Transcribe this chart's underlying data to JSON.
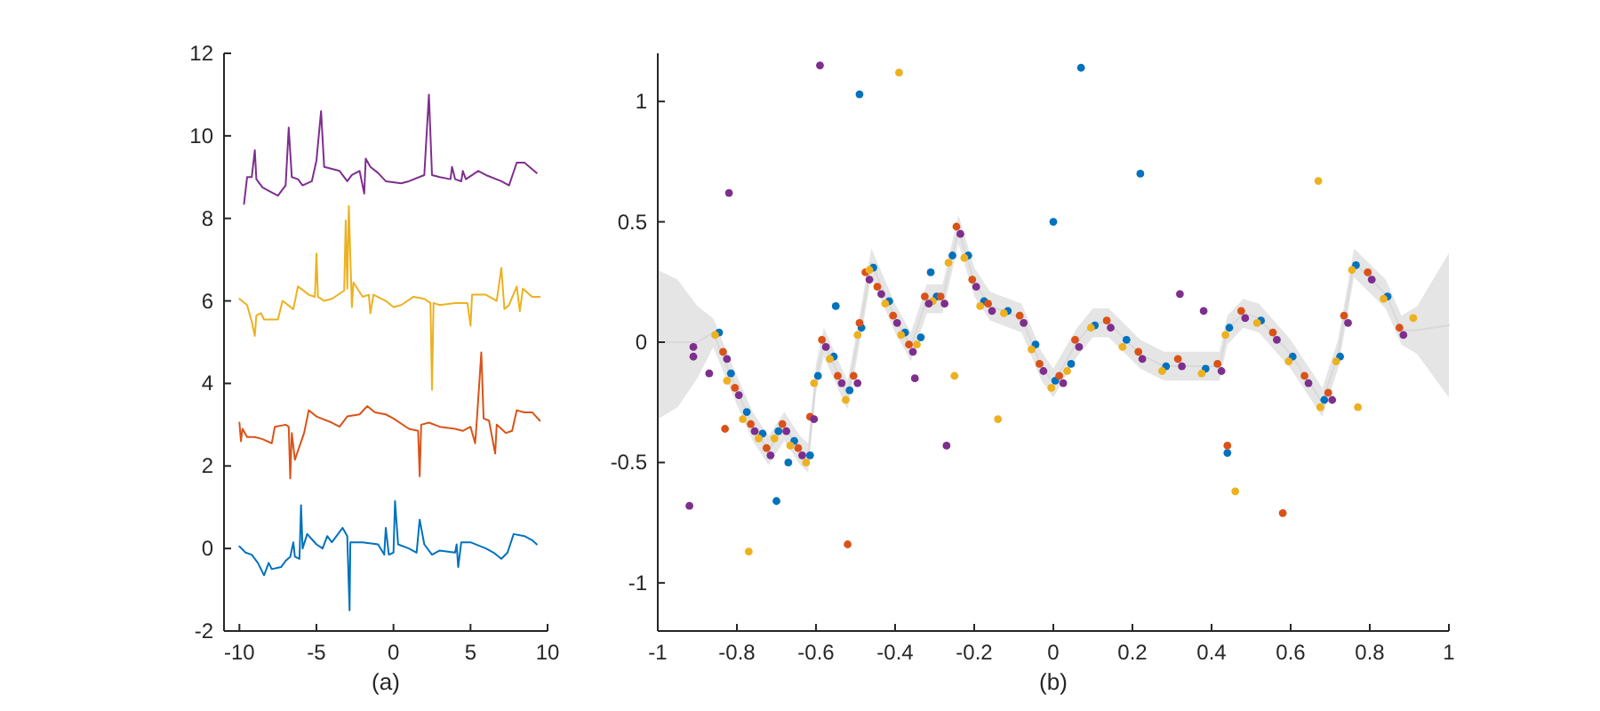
{
  "chart_data": [
    {
      "type": "line",
      "xlabel": "(a)",
      "xlim": [
        -11,
        10
      ],
      "xticks": [
        -10,
        -5,
        0,
        5,
        10
      ],
      "ylim": [
        -2,
        12
      ],
      "yticks": [
        -2,
        0,
        2,
        4,
        6,
        8,
        10,
        12
      ],
      "marker": "none",
      "line_style": "solid",
      "series": [
        {
          "color": "#0072bd",
          "x": [
            -10,
            -9.6,
            -9.2,
            -8.8,
            -8.4,
            -8.1,
            -7.9,
            -7.3,
            -7,
            -6.7,
            -6.5,
            -6.4,
            -6.1,
            -6,
            -5.9,
            -5.6,
            -5,
            -4.6,
            -4.3,
            -4,
            -3.3,
            -3,
            -2.85,
            -2.8,
            -2,
            -1,
            -0.6,
            -0.5,
            -0.3,
            0,
            0.1,
            0.3,
            1,
            1.5,
            1.7,
            2,
            2.5,
            3,
            4,
            4.1,
            4.2,
            4.4,
            5,
            6,
            6.5,
            7,
            7.4,
            7.8,
            8.5,
            9,
            9.3
          ],
          "values": [
            0.05,
            -0.1,
            -0.15,
            -0.35,
            -0.65,
            -0.35,
            -0.5,
            -0.45,
            -0.3,
            -0.2,
            0.15,
            -0.2,
            -0.25,
            1.05,
            0,
            0.35,
            0.1,
            0,
            0.3,
            0.15,
            0.5,
            0.3,
            -1.5,
            0.15,
            0.15,
            0.1,
            -0.15,
            0.5,
            -0.15,
            -0.1,
            1.15,
            0.1,
            0,
            -0.1,
            0.7,
            0.1,
            -0.15,
            -0.05,
            -0.1,
            0.1,
            -0.45,
            0.15,
            0.15,
            0,
            -0.1,
            -0.25,
            -0.1,
            0.35,
            0.3,
            0.2,
            0.1
          ]
        },
        {
          "color": "#d95319",
          "x": [
            -10,
            -9.9,
            -9.8,
            -9.5,
            -9,
            -8.5,
            -7.9,
            -7.7,
            -7,
            -6.8,
            -6.7,
            -6.6,
            -6.4,
            -5.8,
            -5.5,
            -5,
            -4,
            -3.5,
            -3,
            -2.2,
            -1.7,
            -1.2,
            -0.5,
            0,
            1,
            1.6,
            1.7,
            1.8,
            2.3,
            3,
            4,
            4.5,
            5,
            5.3,
            5.4,
            5.7,
            5.85,
            6.2,
            6.6,
            6.7,
            7.3,
            7.7,
            8,
            8.5,
            9,
            9.5
          ],
          "values": [
            3.05,
            2.6,
            2.9,
            2.7,
            2.7,
            2.65,
            2.55,
            2.95,
            3,
            2.95,
            1.7,
            2.8,
            2.15,
            2.8,
            3.35,
            3.2,
            3.05,
            2.95,
            3.2,
            3.25,
            3.45,
            3.3,
            3.25,
            3.15,
            2.9,
            2.85,
            1.75,
            3,
            3.05,
            2.95,
            2.9,
            2.85,
            2.95,
            2.55,
            3.05,
            4.75,
            3.15,
            3.1,
            2.3,
            3,
            2.8,
            2.85,
            3.35,
            3.3,
            3.3,
            3.1
          ]
        },
        {
          "color": "#edb120",
          "x": [
            -10,
            -9.5,
            -9.2,
            -9,
            -8.9,
            -8.6,
            -8.4,
            -7.5,
            -7.2,
            -6.5,
            -6.2,
            -5.5,
            -5.1,
            -5,
            -4.9,
            -4.5,
            -4,
            -3.2,
            -3.1,
            -3,
            -2.9,
            -2.7,
            -2.6,
            -2,
            -1.6,
            -1.5,
            -1.3,
            -0.5,
            0,
            0.5,
            1.3,
            2,
            2.4,
            2.5,
            2.6,
            3,
            4,
            4.8,
            5,
            5.1,
            6,
            6.7,
            7,
            7.2,
            7.5,
            8,
            8.2,
            8.4,
            9,
            9.5
          ],
          "values": [
            6.05,
            5.9,
            5.5,
            5.15,
            5.65,
            5.7,
            5.55,
            5.55,
            6,
            5.8,
            6.35,
            6.15,
            6.1,
            7.15,
            6.1,
            6,
            6.05,
            6.25,
            7.95,
            6.3,
            8.3,
            5.85,
            6.45,
            6.1,
            6.15,
            5.7,
            6.15,
            6,
            5.85,
            5.9,
            6.1,
            6.05,
            5.95,
            3.85,
            5.95,
            5.9,
            5.95,
            5.95,
            5.4,
            6.15,
            6.15,
            6,
            6.8,
            5.8,
            5.9,
            6.35,
            5.75,
            6.3,
            6.1,
            6.1
          ]
        },
        {
          "color": "#7e2f8e",
          "x": [
            -9.7,
            -9.5,
            -9.2,
            -9,
            -8.9,
            -8.5,
            -8,
            -7.5,
            -7,
            -6.8,
            -6.6,
            -6.2,
            -5.9,
            -5.3,
            -5,
            -4.7,
            -4.5,
            -3.5,
            -3,
            -2.7,
            -2.2,
            -1.9,
            -1.8,
            -1.5,
            -1,
            -0.5,
            0.5,
            1,
            2,
            2.3,
            2.5,
            3,
            3.7,
            3.8,
            4,
            4.4,
            4.5,
            4.7,
            5.5,
            6,
            7,
            7.5,
            8,
            8.5,
            9.3
          ],
          "values": [
            8.35,
            9,
            9,
            9.65,
            8.95,
            8.75,
            8.65,
            8.55,
            8.8,
            10.2,
            9,
            8.95,
            8.8,
            8.9,
            9.4,
            10.6,
            9.25,
            9.15,
            8.9,
            9.05,
            9.15,
            8.6,
            9.45,
            9.25,
            9.1,
            8.9,
            8.85,
            8.9,
            9.05,
            11,
            9.05,
            9,
            8.95,
            9.25,
            8.95,
            8.9,
            9.15,
            8.95,
            9.15,
            9.05,
            8.9,
            8.8,
            9.35,
            9.35,
            9.1
          ]
        }
      ]
    },
    {
      "type": "scatter",
      "xlabel": "(b)",
      "xlim": [
        -1,
        1
      ],
      "xticks": [
        -1,
        -0.8,
        -0.6,
        -0.4,
        -0.2,
        0,
        0.2,
        0.4,
        0.6,
        0.8,
        1
      ],
      "ylim": [
        -1.2,
        1.2
      ],
      "yticks": [
        -1,
        -0.5,
        0,
        0.5,
        1
      ],
      "marker": "circle",
      "series": [
        {
          "type": "line",
          "marker": "none",
          "color": "#d9d9d9",
          "x": [
            -1,
            -0.95,
            -0.9,
            -0.86,
            -0.8,
            -0.76,
            -0.72,
            -0.68,
            -0.64,
            -0.62,
            -0.6,
            -0.58,
            -0.54,
            -0.52,
            -0.49,
            -0.46,
            -0.4,
            -0.36,
            -0.32,
            -0.28,
            -0.24,
            -0.2,
            -0.16,
            -0.08,
            -0.03,
            0,
            0.06,
            0.1,
            0.14,
            0.22,
            0.28,
            0.42,
            0.44,
            0.48,
            0.52,
            0.6,
            0.68,
            0.72,
            0.76,
            0.84,
            0.88,
            0.92,
            0.96,
            1
          ],
          "values": [
            0,
            0,
            0,
            0.04,
            -0.2,
            -0.35,
            -0.45,
            -0.35,
            -0.45,
            -0.48,
            -0.15,
            0,
            -0.15,
            -0.22,
            0.05,
            0.33,
            0.1,
            -0.02,
            0.18,
            0.18,
            0.47,
            0.25,
            0.15,
            0.1,
            -0.1,
            -0.17,
            0,
            0.08,
            0.08,
            -0.05,
            -0.1,
            -0.1,
            0.05,
            0.12,
            0.1,
            -0.05,
            -0.25,
            -0.05,
            0.33,
            0.2,
            0.05,
            0.05,
            0.06,
            0.07
          ],
          "lower": [
            -0.32,
            -0.27,
            -0.15,
            -0.02,
            -0.26,
            -0.41,
            -0.51,
            -0.41,
            -0.51,
            -0.54,
            -0.21,
            -0.06,
            -0.21,
            -0.28,
            -0.01,
            0.27,
            0.04,
            -0.08,
            0.12,
            0.12,
            0.41,
            0.19,
            0.09,
            0.04,
            -0.16,
            -0.23,
            -0.06,
            0.02,
            0.02,
            -0.11,
            -0.16,
            -0.16,
            -0.01,
            0.06,
            0.04,
            -0.11,
            -0.31,
            -0.11,
            0.27,
            0.14,
            -0.01,
            -0.05,
            -0.14,
            -0.23
          ],
          "upper": [
            0.3,
            0.26,
            0.15,
            0.1,
            -0.14,
            -0.29,
            -0.39,
            -0.29,
            -0.39,
            -0.42,
            -0.09,
            0.06,
            -0.09,
            -0.16,
            0.11,
            0.39,
            0.16,
            0.04,
            0.24,
            0.24,
            0.53,
            0.31,
            0.21,
            0.16,
            -0.04,
            -0.11,
            0.06,
            0.14,
            0.14,
            0.01,
            -0.04,
            -0.04,
            0.11,
            0.18,
            0.16,
            0.01,
            -0.19,
            0.01,
            0.39,
            0.26,
            0.11,
            0.15,
            0.26,
            0.37
          ]
        },
        {
          "color": "#0072bd",
          "x": [
            -0.845,
            -0.815,
            -0.775,
            -0.735,
            -0.695,
            -0.655,
            -0.615,
            -0.595,
            -0.555,
            -0.515,
            -0.485,
            -0.455,
            -0.415,
            -0.375,
            -0.335,
            -0.295,
            -0.255,
            -0.215,
            -0.175,
            -0.115,
            -0.045,
            0.005,
            0.045,
            0.105,
            0.185,
            0.285,
            0.385,
            0.445,
            0.525,
            0.605,
            0.685,
            0.725,
            0.765,
            0.845,
            -0.49,
            -0.7,
            -0.67,
            -0.55,
            -0.31,
            0,
            0.07,
            0.22,
            0.44
          ],
          "values": [
            0.04,
            -0.13,
            -0.29,
            -0.38,
            -0.37,
            -0.41,
            -0.47,
            -0.14,
            -0.06,
            -0.2,
            0.06,
            0.31,
            0.17,
            0.04,
            0.02,
            0.19,
            0.36,
            0.36,
            0.17,
            0.13,
            -0.01,
            -0.16,
            -0.09,
            0.07,
            0.01,
            -0.1,
            -0.11,
            0.06,
            0.09,
            -0.06,
            -0.24,
            -0.06,
            0.32,
            0.19,
            1.03,
            -0.66,
            -0.5,
            0.15,
            0.29,
            0.5,
            1.14,
            0.7,
            -0.46
          ]
        },
        {
          "color": "#d95319",
          "x": [
            -0.835,
            -0.805,
            -0.765,
            -0.725,
            -0.685,
            -0.645,
            -0.615,
            -0.585,
            -0.545,
            -0.505,
            -0.475,
            -0.445,
            -0.405,
            -0.365,
            -0.325,
            -0.285,
            -0.245,
            -0.205,
            -0.165,
            -0.085,
            -0.035,
            0.015,
            0.055,
            0.135,
            0.215,
            0.315,
            0.415,
            0.475,
            0.555,
            0.635,
            0.695,
            0.735,
            0.795,
            0.875,
            -0.52,
            -0.83,
            -0.49,
            0.44,
            0.58
          ],
          "values": [
            -0.04,
            -0.19,
            -0.34,
            -0.44,
            -0.34,
            -0.44,
            -0.31,
            0.01,
            -0.14,
            -0.14,
            0.29,
            0.23,
            0.11,
            -0.01,
            0.19,
            0.19,
            0.48,
            0.26,
            0.16,
            0.11,
            -0.09,
            -0.14,
            0.01,
            0.09,
            -0.04,
            -0.07,
            -0.09,
            0.13,
            0.04,
            -0.14,
            -0.21,
            0.11,
            0.29,
            0.06,
            -0.84,
            -0.36,
            0.08,
            -0.43,
            -0.71
          ]
        },
        {
          "color": "#edb120",
          "x": [
            -0.855,
            -0.825,
            -0.785,
            -0.745,
            -0.705,
            -0.665,
            -0.625,
            -0.605,
            -0.565,
            -0.525,
            -0.495,
            -0.465,
            -0.425,
            -0.385,
            -0.345,
            -0.305,
            -0.265,
            -0.225,
            -0.185,
            -0.125,
            -0.055,
            -0.005,
            0.035,
            0.095,
            0.175,
            0.275,
            0.375,
            0.435,
            0.515,
            0.595,
            0.675,
            0.715,
            0.755,
            0.835,
            -0.39,
            -0.77,
            -0.25,
            -0.14,
            0.46,
            0.67,
            0.77,
            0.91
          ],
          "values": [
            0.03,
            -0.16,
            -0.32,
            -0.4,
            -0.4,
            -0.43,
            -0.5,
            -0.17,
            -0.07,
            -0.24,
            0.03,
            0.3,
            0.16,
            0.03,
            -0.01,
            0.17,
            0.33,
            0.35,
            0.15,
            0.12,
            -0.03,
            -0.19,
            -0.12,
            0.06,
            -0.02,
            -0.12,
            -0.13,
            0.03,
            0.08,
            -0.08,
            -0.27,
            -0.08,
            0.3,
            0.18,
            1.12,
            -0.87,
            -0.14,
            -0.32,
            -0.62,
            0.67,
            -0.27,
            0.1
          ]
        },
        {
          "color": "#7e2f8e",
          "x": [
            -0.825,
            -0.795,
            -0.755,
            -0.715,
            -0.675,
            -0.635,
            -0.605,
            -0.575,
            -0.535,
            -0.495,
            -0.465,
            -0.435,
            -0.395,
            -0.355,
            -0.315,
            -0.275,
            -0.235,
            -0.195,
            -0.155,
            -0.075,
            -0.025,
            0.025,
            0.065,
            0.145,
            0.225,
            0.325,
            0.425,
            0.485,
            0.565,
            0.645,
            0.705,
            0.745,
            0.805,
            0.885,
            -0.59,
            -0.82,
            -0.92,
            -0.91,
            -0.91,
            -0.87,
            -0.35,
            -0.27,
            0.32,
            0.38
          ],
          "values": [
            -0.07,
            -0.22,
            -0.37,
            -0.47,
            -0.37,
            -0.47,
            -0.32,
            -0.02,
            -0.17,
            -0.17,
            0.26,
            0.2,
            0.08,
            -0.04,
            0.16,
            0.16,
            0.45,
            0.23,
            0.13,
            0.08,
            -0.12,
            -0.17,
            -0.02,
            0.06,
            -0.07,
            -0.1,
            -0.12,
            0.1,
            0.01,
            -0.17,
            -0.24,
            0.08,
            0.26,
            0.03,
            1.15,
            0.62,
            -0.68,
            -0.02,
            -0.06,
            -0.13,
            -0.15,
            -0.43,
            0.2,
            0.13
          ]
        }
      ]
    }
  ]
}
